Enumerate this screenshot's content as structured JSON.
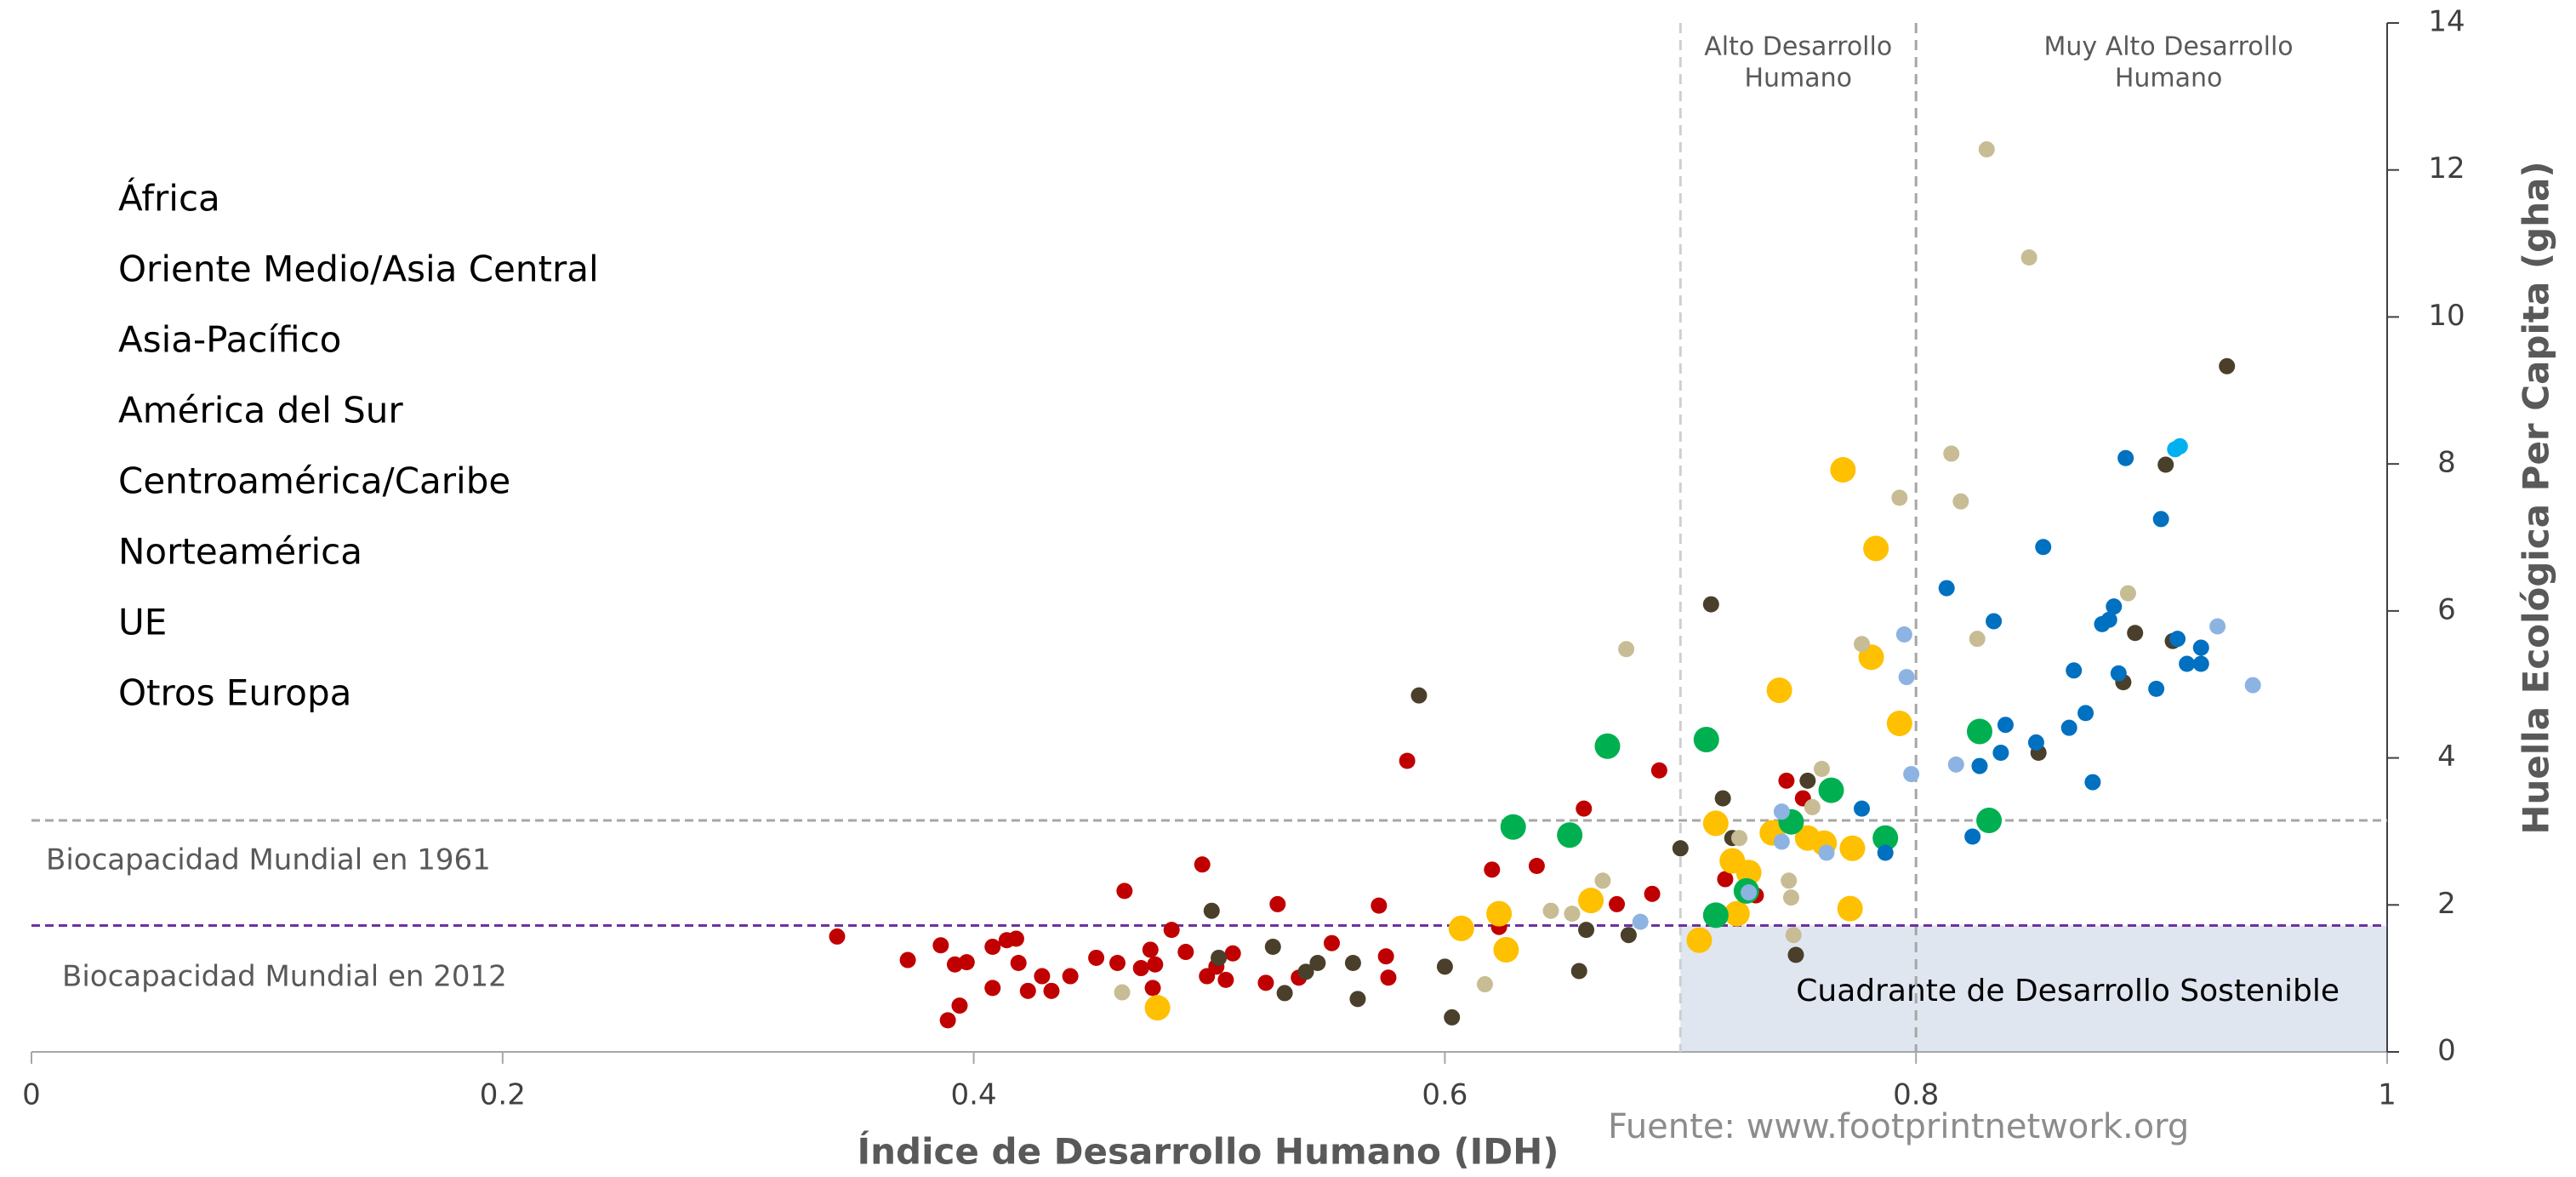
{
  "chart_data": {
    "type": "scatter",
    "xlabel": "Índice de Desarrollo Humano (IDH)",
    "ylabel": "Huella Ecológica Per Capita (gha)",
    "source": "Fuente: www.footprintnetwork.org",
    "xlim": [
      0,
      1
    ],
    "xticks": [
      0,
      0.2,
      0.4,
      0.6,
      0.8,
      1
    ],
    "ylim": [
      0,
      14
    ],
    "yticks": [
      0,
      2,
      4,
      6,
      8,
      10,
      12,
      14
    ],
    "vlines": [
      {
        "value": 0.7,
        "label": [
          "Alto Desarrollo",
          "Humano"
        ],
        "color": "#cfcfcf"
      },
      {
        "value": 0.8,
        "label": [
          "Muy Alto Desarrollo",
          "Humano"
        ],
        "color": "#a6a6a6"
      }
    ],
    "hlines": [
      {
        "value": 3.15,
        "label": "Biocapacidad Mundial en 1961",
        "color": "#a6a6a6"
      },
      {
        "value": 1.72,
        "label": "Biocapacidad Mundial en 2012",
        "color": "#7030a0"
      }
    ],
    "quadrant_label": "Cuadrante de Desarrollo Sostenible",
    "quadrant_color": "#dfe6f0",
    "series": [
      {
        "name": "África",
        "color": "#c00000",
        "marker": "small",
        "x": [
          0.342,
          0.372,
          0.386,
          0.392,
          0.397,
          0.389,
          0.394,
          0.408,
          0.414,
          0.418,
          0.419,
          0.408,
          0.423,
          0.429,
          0.433,
          0.441,
          0.452,
          0.461,
          0.464,
          0.471,
          0.475,
          0.477,
          0.476,
          0.484,
          0.49,
          0.497,
          0.499,
          0.503,
          0.507,
          0.51,
          0.524,
          0.529,
          0.538,
          0.552,
          0.572,
          0.575,
          0.576,
          0.584,
          0.62,
          0.623,
          0.639,
          0.659,
          0.673,
          0.688,
          0.691,
          0.719,
          0.732,
          0.745,
          0.752
        ],
        "values": [
          1.57,
          1.25,
          1.45,
          1.19,
          1.22,
          0.43,
          0.63,
          1.43,
          1.52,
          1.54,
          1.21,
          0.87,
          0.83,
          1.03,
          0.83,
          1.03,
          1.28,
          1.21,
          2.19,
          1.14,
          1.39,
          1.19,
          0.87,
          1.66,
          1.36,
          2.55,
          1.03,
          1.16,
          0.98,
          1.34,
          0.94,
          2.01,
          1.01,
          1.48,
          1.99,
          1.3,
          1.01,
          3.96,
          2.48,
          1.7,
          2.53,
          3.31,
          2.01,
          2.15,
          3.83,
          2.35,
          2.13,
          3.69,
          3.45
        ]
      },
      {
        "name": "Oriente Medio/Asia Central",
        "color": "#4a3f2a",
        "marker": "small",
        "x": [
          0.589,
          0.501,
          0.504,
          0.527,
          0.532,
          0.541,
          0.546,
          0.561,
          0.563,
          0.6,
          0.603,
          0.657,
          0.66,
          0.678,
          0.7,
          0.713,
          0.718,
          0.722,
          0.724,
          0.749,
          0.754,
          0.852,
          0.888,
          0.893,
          0.906,
          0.932,
          0.909
        ],
        "values": [
          4.85,
          1.92,
          1.28,
          1.43,
          0.8,
          1.09,
          1.21,
          1.21,
          0.72,
          1.16,
          0.47,
          1.1,
          1.66,
          1.59,
          2.77,
          6.09,
          3.45,
          2.91,
          2.6,
          1.32,
          3.69,
          4.07,
          5.03,
          5.7,
          7.99,
          9.33,
          5.59
        ]
      },
      {
        "name": "Asia-Pacífico",
        "color": "#ffc000",
        "marker": "large",
        "x": [
          0.478,
          0.607,
          0.623,
          0.626,
          0.662,
          0.708,
          0.715,
          0.722,
          0.724,
          0.729,
          0.739,
          0.742,
          0.754,
          0.761,
          0.769,
          0.772,
          0.773,
          0.781,
          0.783,
          0.793
        ],
        "values": [
          0.6,
          1.68,
          1.88,
          1.39,
          2.06,
          1.52,
          3.11,
          2.6,
          1.88,
          2.44,
          2.98,
          4.92,
          2.91,
          2.84,
          7.92,
          1.95,
          2.77,
          5.37,
          6.85,
          4.47
        ]
      },
      {
        "name": "América del Sur",
        "color": "#00b050",
        "marker": "large",
        "x": [
          0.629,
          0.653,
          0.669,
          0.711,
          0.715,
          0.728,
          0.747,
          0.764,
          0.787,
          0.827,
          0.831
        ],
        "values": [
          3.06,
          2.95,
          4.16,
          4.25,
          1.86,
          2.19,
          3.13,
          3.56,
          2.91,
          4.36,
          3.15
        ]
      },
      {
        "name": "Centroamérica/Caribe",
        "color": "#c8bc94",
        "marker": "small",
        "x": [
          0.463,
          0.617,
          0.645,
          0.654,
          0.667,
          0.677,
          0.725,
          0.746,
          0.747,
          0.748,
          0.756,
          0.76,
          0.777,
          0.793,
          0.815,
          0.819,
          0.826,
          0.83,
          0.848,
          0.89
        ],
        "values": [
          0.81,
          0.92,
          1.92,
          1.88,
          2.33,
          5.48,
          2.91,
          2.33,
          2.1,
          1.59,
          3.33,
          3.85,
          5.55,
          7.54,
          8.14,
          7.49,
          5.62,
          12.28,
          10.81,
          6.24
        ]
      },
      {
        "name": "Norteamérica",
        "color": "#00b0f0",
        "marker": "small",
        "x": [
          0.91,
          0.912
        ],
        "values": [
          8.2,
          8.24
        ]
      },
      {
        "name": "UE",
        "color": "#0070c0",
        "marker": "small",
        "x": [
          0.787,
          0.777,
          0.813,
          0.824,
          0.827,
          0.833,
          0.836,
          0.838,
          0.851,
          0.854,
          0.865,
          0.867,
          0.872,
          0.875,
          0.879,
          0.882,
          0.884,
          0.886,
          0.889,
          0.902,
          0.904,
          0.911,
          0.915,
          0.921,
          0.921
        ],
        "values": [
          2.71,
          3.31,
          6.31,
          2.93,
          3.89,
          5.86,
          4.07,
          4.45,
          4.21,
          6.87,
          4.41,
          5.19,
          4.61,
          3.67,
          5.82,
          5.88,
          6.06,
          5.15,
          8.08,
          4.94,
          7.25,
          5.62,
          5.28,
          5.5,
          5.28
        ]
      },
      {
        "name": "Otros Europa",
        "color": "#8db3e2",
        "marker": "small",
        "x": [
          0.683,
          0.729,
          0.743,
          0.743,
          0.762,
          0.795,
          0.796,
          0.798,
          0.817,
          0.928,
          0.943
        ],
        "values": [
          1.77,
          2.17,
          3.27,
          2.86,
          2.71,
          5.68,
          5.1,
          3.78,
          3.91,
          5.79,
          4.99
        ]
      }
    ]
  }
}
